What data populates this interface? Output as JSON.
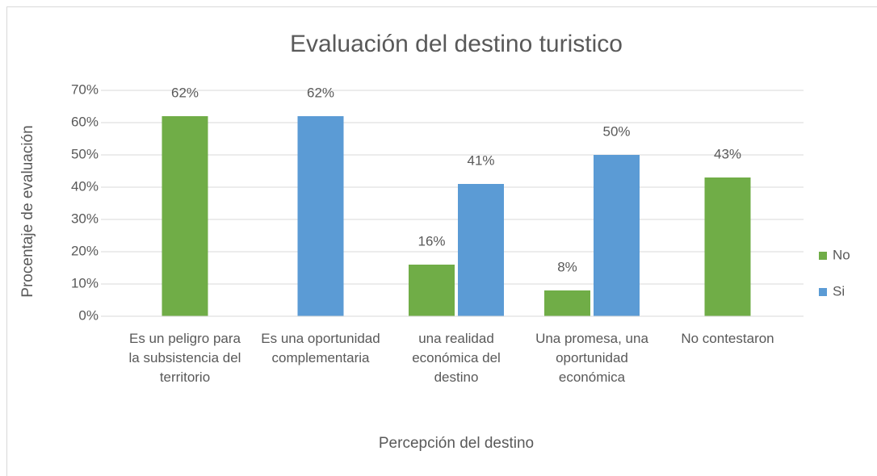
{
  "chart_data": {
    "type": "bar",
    "title": "Evaluación del destino turistico",
    "x_label": "Percepción del destino",
    "y_label": "Procentaje de evaluación",
    "categories": [
      "Es un peligro para la subsistencia del territorio",
      "Es una oportunidad complementaria",
      "una realidad económica del destino",
      "Una promesa, una oportunidad económica",
      "No contestaron"
    ],
    "series": [
      {
        "name": "No",
        "color": "#70ad47",
        "values": [
          62,
          null,
          16,
          8,
          43
        ],
        "value_labels": [
          "62%",
          null,
          "16%",
          "8%",
          "43%"
        ]
      },
      {
        "name": "Si",
        "color": "#5b9bd5",
        "values": [
          null,
          62,
          41,
          50,
          null
        ],
        "value_labels": [
          null,
          "62%",
          "41%",
          "50%",
          null
        ]
      }
    ],
    "ylim": [
      0,
      70
    ],
    "yticks": [
      {
        "value": 0,
        "label": "0%"
      },
      {
        "value": 10,
        "label": "10%"
      },
      {
        "value": 20,
        "label": "20%"
      },
      {
        "value": 30,
        "label": "30%"
      },
      {
        "value": 40,
        "label": "40%"
      },
      {
        "value": 50,
        "label": "50%"
      },
      {
        "value": 60,
        "label": "60%"
      },
      {
        "value": 70,
        "label": "70%"
      }
    ],
    "grid": true,
    "legend": "right"
  }
}
